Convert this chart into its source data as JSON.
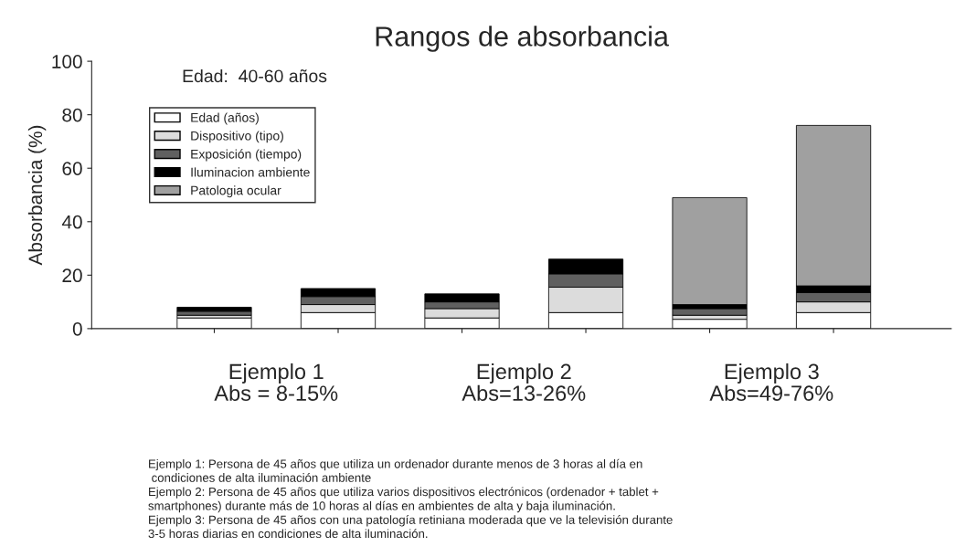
{
  "chart_data": {
    "type": "bar",
    "stacked": true,
    "title": "Rangos de absorbancia",
    "ylabel": "Absorbancia (%)",
    "categories": [
      null,
      null,
      null,
      null,
      null,
      null
    ],
    "series": [
      {
        "name": "Edad (años)",
        "color": "#ffffff",
        "values": [
          4,
          6,
          4,
          6,
          3.5,
          6
        ]
      },
      {
        "name": "Dispositivo (tipo)",
        "color": "#dcdcdc",
        "values": [
          1,
          3,
          3.5,
          9.5,
          1.5,
          4
        ]
      },
      {
        "name": "Exposición (tiempo)",
        "color": "#606060",
        "values": [
          1.5,
          3,
          2.5,
          5,
          2.5,
          3.5
        ]
      },
      {
        "name": "Iluminacion ambiente",
        "color": "#000000",
        "values": [
          1.5,
          3,
          3,
          5.5,
          1.5,
          2.5
        ]
      },
      {
        "name": "Patologia ocular",
        "color": "#a0a0a0",
        "values": [
          null,
          null,
          null,
          null,
          40,
          60
        ]
      }
    ],
    "ylim": [
      0,
      100
    ],
    "yticks": [
      0,
      20,
      40,
      60,
      80,
      100
    ],
    "grid": false,
    "legend": "top left",
    "annotations": [
      "Edad:  40-60 años",
      "Ejemplo 1\nAbs = 8-15%",
      "Ejemplo 2\nAbs=13-26%",
      "Ejemplo 3\nAbs=49-76%",
      "Ejemplo 1: Persona de 45 años que utiliza un ordenador durante menos de 3 horas al día en\n condiciones de alta iluminación ambiente\nEjemplo 2: Persona de 45 años que utiliza varios dispositivos electrónicos (ordenador + tablet +\nsmartphones) durante más de 10 horas al días en ambientes de alta y baja iluminación.\nEjemplo 3: Persona de 45 años con una patología retiniana moderada que ve la televisión durante\n3-5 horas diarias en condiciones de alta iluminación."
    ]
  }
}
